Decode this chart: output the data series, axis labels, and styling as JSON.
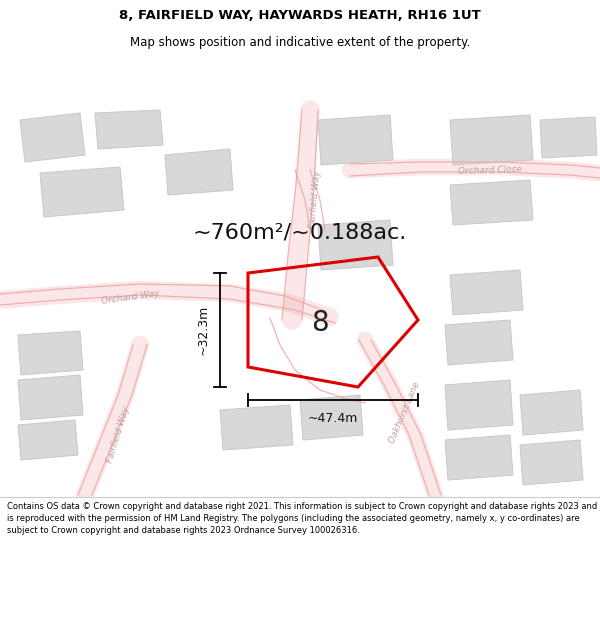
{
  "title_line1": "8, FAIRFIELD WAY, HAYWARDS HEATH, RH16 1UT",
  "title_line2": "Map shows position and indicative extent of the property.",
  "area_text": "~760m²/~0.188ac.",
  "label_number": "8",
  "dim_width": "~47.4m",
  "dim_height": "~32.3m",
  "footer": "Contains OS data © Crown copyright and database right 2021. This information is subject to Crown copyright and database rights 2023 and is reproduced with the permission of HM Land Registry. The polygons (including the associated geometry, namely x, y co-ordinates) are subject to Crown copyright and database rights 2023 Ordnance Survey 100026316.",
  "bg_color": "#ffffff",
  "map_bg": "#f7f6f6",
  "road_color": "#f0a0a0",
  "road_label_color": "#bba0a0",
  "building_color": "#d8d8d8",
  "building_edge": "#c8c8c8",
  "highlight_color": "#dd0000",
  "title_fontsize": 9.5,
  "subtitle_fontsize": 8.5,
  "area_fontsize": 16,
  "dim_fontsize": 9,
  "label_fontsize": 20,
  "road_lw": 1.2,
  "road_fill_alpha": 0.18,
  "footer_fontsize": 6.0
}
